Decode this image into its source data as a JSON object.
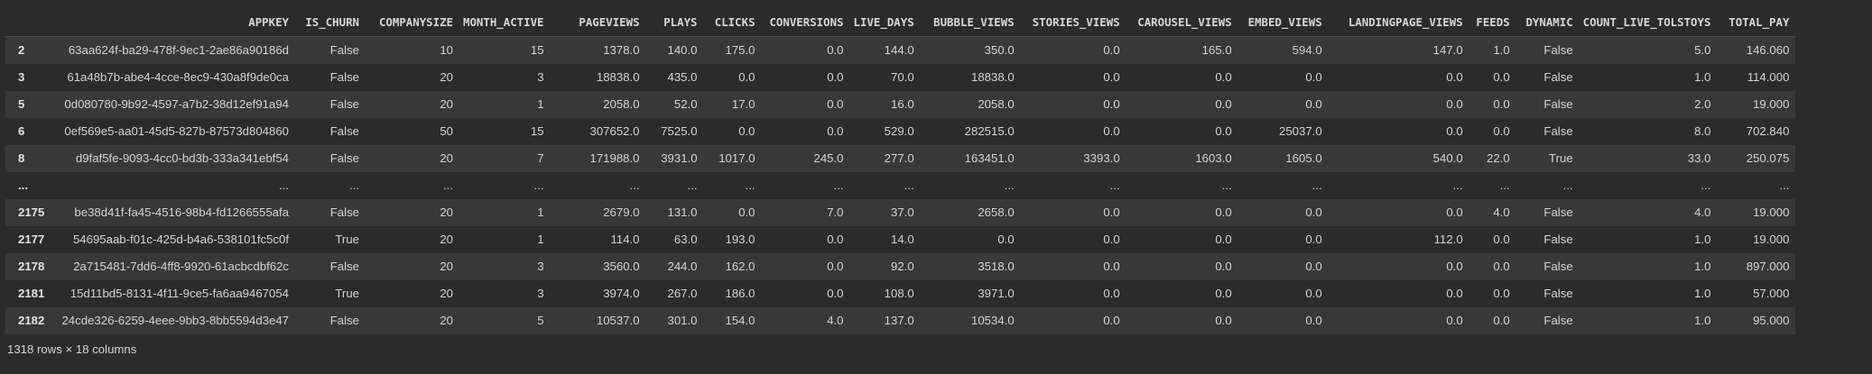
{
  "table": {
    "columns": [
      "",
      "APPKEY",
      "IS_CHURN",
      "COMPANYSIZE",
      "MONTH_ACTIVE",
      "PAGEVIEWS",
      "PLAYS",
      "CLICKS",
      "CONVERSIONS",
      "LIVE_DAYS",
      "BUBBLE_VIEWS",
      "STORIES_VIEWS",
      "CAROUSEL_VIEWS",
      "EMBED_VIEWS",
      "LANDINGPAGE_VIEWS",
      "FEEDS",
      "DYNAMIC",
      "COUNT_LIVE_TOLSTOYS",
      "TOTAL_PAY"
    ],
    "rows": [
      {
        "index": "2",
        "cells": [
          "63aa624f-ba29-478f-9ec1-2ae86a90186d",
          "False",
          "10",
          "15",
          "1378.0",
          "140.0",
          "175.0",
          "0.0",
          "144.0",
          "350.0",
          "0.0",
          "165.0",
          "594.0",
          "147.0",
          "1.0",
          "False",
          "5.0",
          "146.060"
        ]
      },
      {
        "index": "3",
        "cells": [
          "61a48b7b-abe4-4cce-8ec9-430a8f9de0ca",
          "False",
          "20",
          "3",
          "18838.0",
          "435.0",
          "0.0",
          "0.0",
          "70.0",
          "18838.0",
          "0.0",
          "0.0",
          "0.0",
          "0.0",
          "0.0",
          "False",
          "1.0",
          "114.000"
        ]
      },
      {
        "index": "5",
        "cells": [
          "0d080780-9b92-4597-a7b2-38d12ef91a94",
          "False",
          "20",
          "1",
          "2058.0",
          "52.0",
          "17.0",
          "0.0",
          "16.0",
          "2058.0",
          "0.0",
          "0.0",
          "0.0",
          "0.0",
          "0.0",
          "False",
          "2.0",
          "19.000"
        ]
      },
      {
        "index": "6",
        "cells": [
          "0ef569e5-aa01-45d5-827b-87573d804860",
          "False",
          "50",
          "15",
          "307652.0",
          "7525.0",
          "0.0",
          "0.0",
          "529.0",
          "282515.0",
          "0.0",
          "0.0",
          "25037.0",
          "0.0",
          "0.0",
          "False",
          "8.0",
          "702.840"
        ]
      },
      {
        "index": "8",
        "cells": [
          "d9faf5fe-9093-4cc0-bd3b-333a341ebf54",
          "False",
          "20",
          "7",
          "171988.0",
          "3931.0",
          "1017.0",
          "245.0",
          "277.0",
          "163451.0",
          "3393.0",
          "1603.0",
          "1605.0",
          "540.0",
          "22.0",
          "True",
          "33.0",
          "250.075"
        ]
      },
      {
        "index": "...",
        "cells": [
          "...",
          "...",
          "...",
          "...",
          "...",
          "...",
          "...",
          "...",
          "...",
          "...",
          "...",
          "...",
          "...",
          "...",
          "...",
          "...",
          "...",
          "..."
        ]
      },
      {
        "index": "2175",
        "cells": [
          "be38d41f-fa45-4516-98b4-fd1266555afa",
          "False",
          "20",
          "1",
          "2679.0",
          "131.0",
          "0.0",
          "7.0",
          "37.0",
          "2658.0",
          "0.0",
          "0.0",
          "0.0",
          "0.0",
          "4.0",
          "False",
          "4.0",
          "19.000"
        ]
      },
      {
        "index": "2177",
        "cells": [
          "54695aab-f01c-425d-b4a6-538101fc5c0f",
          "True",
          "20",
          "1",
          "114.0",
          "63.0",
          "193.0",
          "0.0",
          "14.0",
          "0.0",
          "0.0",
          "0.0",
          "0.0",
          "112.0",
          "0.0",
          "False",
          "1.0",
          "19.000"
        ]
      },
      {
        "index": "2178",
        "cells": [
          "2a715481-7dd6-4ff8-9920-61acbcdbf62c",
          "False",
          "20",
          "3",
          "3560.0",
          "244.0",
          "162.0",
          "0.0",
          "92.0",
          "3518.0",
          "0.0",
          "0.0",
          "0.0",
          "0.0",
          "0.0",
          "False",
          "1.0",
          "897.000"
        ]
      },
      {
        "index": "2181",
        "cells": [
          "15d11bd5-8131-4f11-9ce5-fa6aa9467054",
          "True",
          "20",
          "3",
          "3974.0",
          "267.0",
          "186.0",
          "0.0",
          "108.0",
          "3971.0",
          "0.0",
          "0.0",
          "0.0",
          "0.0",
          "0.0",
          "False",
          "1.0",
          "57.000"
        ]
      },
      {
        "index": "2182",
        "cells": [
          "24cde326-6259-4eee-9bb3-8bb5594d3e47",
          "False",
          "20",
          "5",
          "10537.0",
          "301.0",
          "154.0",
          "4.0",
          "137.0",
          "10534.0",
          "0.0",
          "0.0",
          "0.0",
          "0.0",
          "0.0",
          "False",
          "1.0",
          "95.000"
        ]
      }
    ]
  },
  "footer": "1318 rows × 18 columns"
}
